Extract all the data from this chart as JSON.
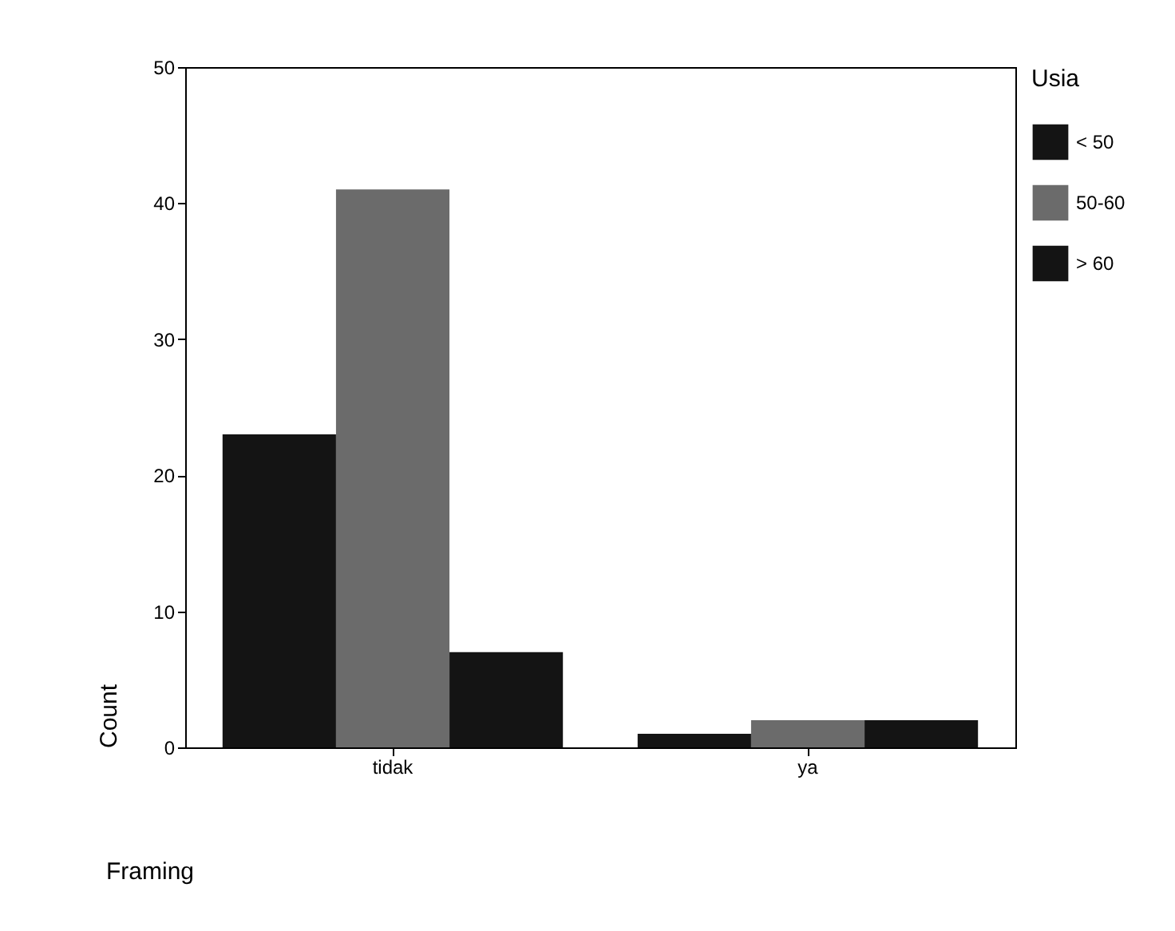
{
  "chart_data": {
    "type": "bar",
    "xlabel": "Framing",
    "ylabel": "Count",
    "legend_title": "Usia",
    "categories": [
      "tidak",
      "ya"
    ],
    "series": [
      {
        "name": "< 50",
        "color": "#141414",
        "values": [
          23,
          1
        ]
      },
      {
        "name": "50-60",
        "color": "#6b6b6b",
        "values": [
          41,
          2
        ]
      },
      {
        "name": "> 60",
        "color": "#141414",
        "values": [
          7,
          2
        ]
      }
    ],
    "ylim": [
      0,
      50
    ],
    "yticks": [
      0,
      10,
      20,
      30,
      40,
      50
    ],
    "grid": false,
    "legend": "right"
  }
}
